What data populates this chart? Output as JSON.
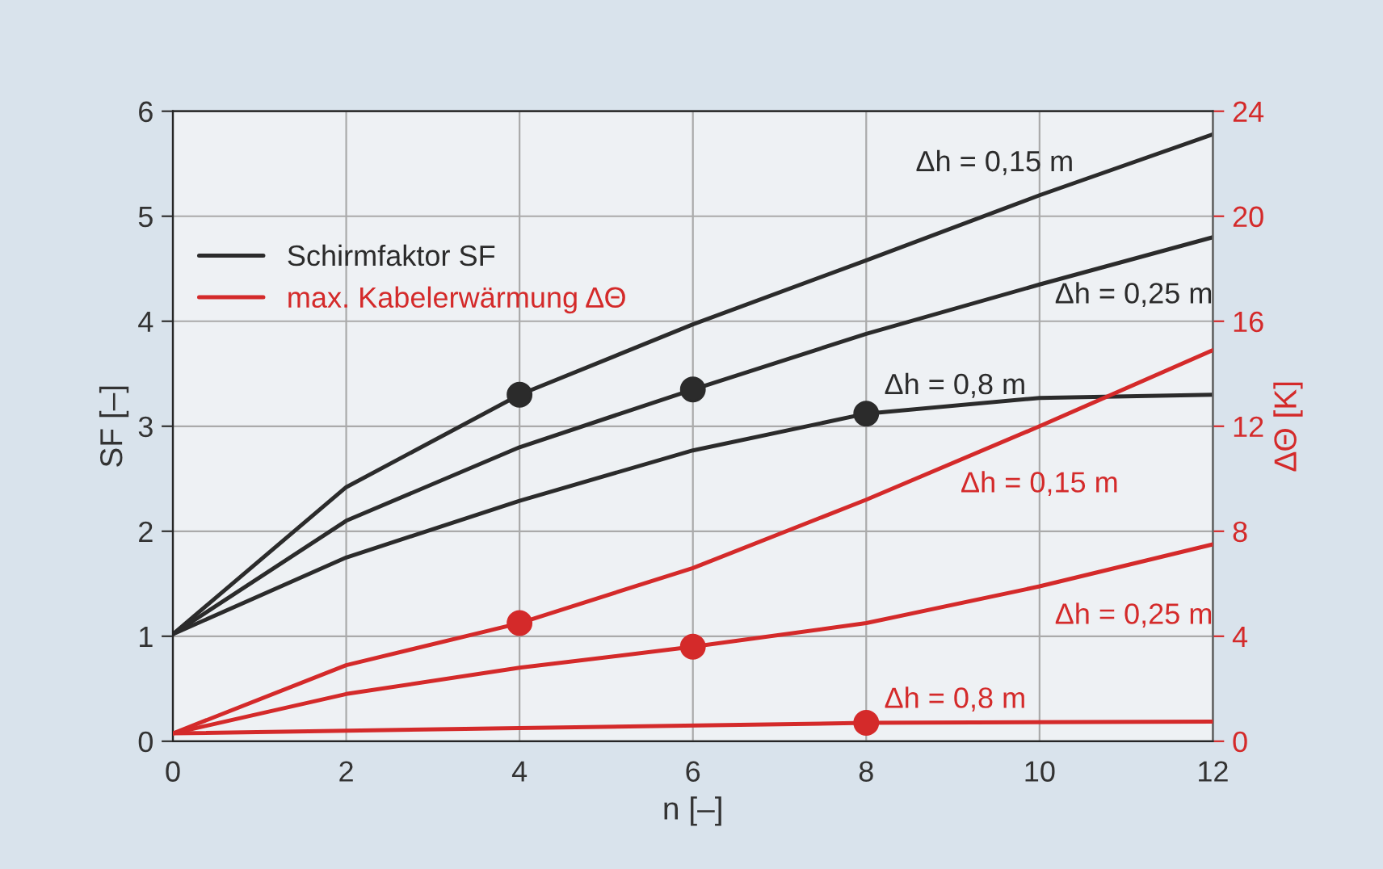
{
  "chart_data": {
    "type": "line",
    "xlabel": "n [–]",
    "ylabel": "SF [–]",
    "y2label": "ΔΘ [K]",
    "xlim": [
      0,
      12
    ],
    "xticks": [
      0,
      2,
      4,
      6,
      8,
      10,
      12
    ],
    "ylim": [
      0,
      6
    ],
    "yticks": [
      0,
      1,
      2,
      3,
      4,
      5,
      6
    ],
    "y2lim": [
      0,
      24
    ],
    "y2ticks": [
      0,
      4,
      8,
      12,
      16,
      20,
      24
    ],
    "grid": true,
    "legend": "top left",
    "line_style": "solid",
    "series": [
      {
        "name": "Schirmfaktor SF",
        "color": "#2b2b2b",
        "x": [
          0,
          2,
          4,
          6,
          8,
          10,
          12
        ],
        "values": [
          1.02,
          2.42,
          3.3,
          3.97,
          4.58,
          5.2,
          5.78
        ]
      },
      {
        "color": "#2b2b2b",
        "x": [
          0,
          2,
          4,
          6,
          8,
          10,
          12
        ],
        "values": [
          1.02,
          2.1,
          2.8,
          3.35,
          3.88,
          4.35,
          4.8
        ]
      },
      {
        "color": "#2b2b2b",
        "x": [
          0,
          2,
          4,
          6,
          8,
          10,
          12
        ],
        "values": [
          1.02,
          1.75,
          2.29,
          2.77,
          3.12,
          3.27,
          3.3
        ]
      },
      {
        "type": "scatter",
        "marker": "circle",
        "color": "#2b2b2b",
        "x": [
          4,
          6,
          8
        ],
        "values": [
          3.3,
          3.35,
          3.12
        ]
      },
      {
        "name": "max. Kabelerwärmung ΔΘ",
        "axis": "y2",
        "color": "#d42a2a",
        "x": [
          0,
          2,
          4,
          6,
          8,
          10,
          12
        ],
        "values": [
          0.3,
          2.9,
          4.5,
          6.6,
          9.2,
          12,
          14.9
        ]
      },
      {
        "axis": "y2",
        "color": "#d42a2a",
        "x": [
          0,
          2,
          4,
          6,
          8,
          10,
          12
        ],
        "values": [
          0.3,
          1.8,
          2.8,
          3.6,
          4.5,
          5.9,
          7.5
        ]
      },
      {
        "axis": "y2",
        "color": "#d42a2a",
        "x": [
          0,
          4,
          8,
          12
        ],
        "values": [
          0.3,
          0.5,
          0.7,
          0.75
        ]
      },
      {
        "type": "scatter",
        "marker": "circle",
        "axis": "y2",
        "color": "#d42a2a",
        "x": [
          4,
          6,
          8
        ],
        "values": [
          4.5,
          3.6,
          0.7
        ]
      }
    ],
    "annotations": [
      {
        "text": "Δh = 0,15 m",
        "x": 10,
        "y": 5.2
      },
      {
        "text": "Δh = 0,25 m",
        "x": 12,
        "y": 4.8
      },
      {
        "text": "Δh = 0,8 m",
        "x": 8,
        "y": 3.12
      },
      {
        "text": "Δh = 0,15 m",
        "x": 10,
        "y": 3
      },
      {
        "text": "Δh = 0,25 m",
        "x": 12,
        "y": 1.875
      },
      {
        "text": "Δh = 0,8 m",
        "x": 8,
        "y": 0.175
      }
    ]
  }
}
